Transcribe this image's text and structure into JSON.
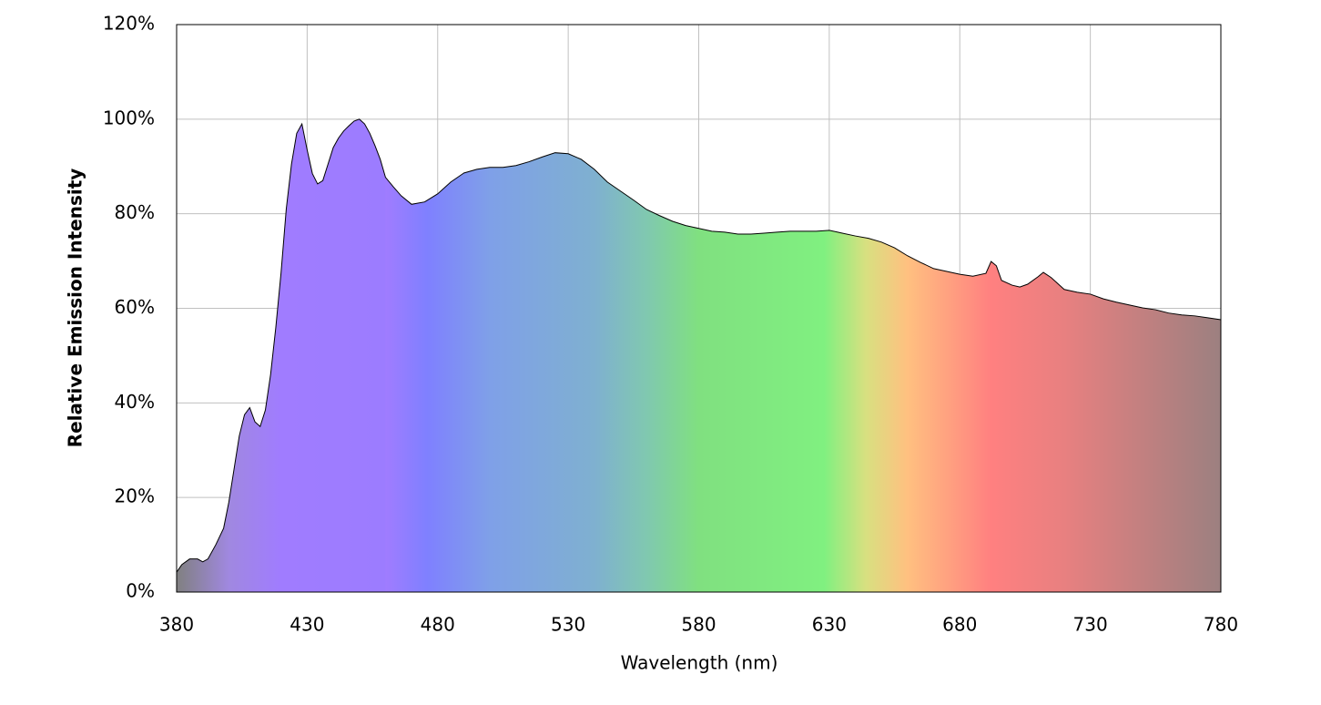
{
  "chart_data": {
    "type": "area",
    "x_label": "Wavelength (nm)",
    "y_label": "Relative Emission Intensity",
    "x": [
      380,
      382,
      385,
      388,
      390,
      392,
      395,
      398,
      400,
      402,
      404,
      406,
      408,
      410,
      412,
      414,
      416,
      418,
      420,
      422,
      424,
      426,
      428,
      430,
      432,
      434,
      436,
      438,
      440,
      442,
      444,
      446,
      448,
      450,
      452,
      454,
      456,
      458,
      460,
      463,
      466,
      470,
      475,
      480,
      485,
      490,
      495,
      500,
      505,
      510,
      515,
      520,
      525,
      530,
      535,
      540,
      545,
      550,
      555,
      560,
      565,
      570,
      575,
      580,
      585,
      590,
      595,
      600,
      605,
      610,
      615,
      620,
      625,
      630,
      635,
      640,
      645,
      650,
      655,
      660,
      665,
      670,
      675,
      680,
      685,
      690,
      692,
      694,
      696,
      700,
      703,
      706,
      710,
      712,
      715,
      720,
      725,
      730,
      735,
      740,
      745,
      750,
      755,
      760,
      765,
      770,
      775,
      780
    ],
    "values": [
      4.2,
      5.8,
      7,
      7,
      6.4,
      7,
      10,
      13.5,
      19,
      26,
      33,
      37.5,
      39,
      36,
      35,
      38.5,
      46,
      56,
      67.5,
      81,
      90.5,
      97,
      99,
      93.5,
      88.5,
      86.3,
      87,
      90.5,
      94,
      96,
      97.5,
      98.6,
      99.6,
      100,
      99,
      97,
      94.4,
      91.5,
      87.7,
      85.7,
      83.8,
      82,
      82.5,
      84.2,
      86.7,
      88.6,
      89.4,
      89.8,
      89.8,
      90.2,
      91,
      92,
      92.9,
      92.7,
      91.5,
      89.4,
      86.7,
      84.8,
      82.9,
      80.9,
      79.6,
      78.4,
      77.5,
      76.9,
      76.3,
      76.1,
      75.7,
      75.7,
      75.9,
      76.1,
      76.3,
      76.3,
      76.3,
      76.5,
      75.9,
      75.3,
      74.8,
      74,
      72.8,
      71.1,
      69.7,
      68.4,
      67.8,
      67.2,
      66.8,
      67.4,
      69.9,
      69,
      65.9,
      64.9,
      64.5,
      65.1,
      66.7,
      67.6,
      66.5,
      64,
      63.4,
      63,
      62,
      61.3,
      60.7,
      60.1,
      59.7,
      59,
      58.6,
      58.4,
      58,
      57.6
    ],
    "xlim": [
      380,
      780
    ],
    "xticks": [
      380,
      430,
      480,
      530,
      580,
      630,
      680,
      730,
      780
    ],
    "ylim": [
      0,
      120
    ],
    "yticks": [
      {
        "value": 0,
        "label": "0%"
      },
      {
        "value": 20,
        "label": "20%"
      },
      {
        "value": 40,
        "label": "40%"
      },
      {
        "value": 60,
        "label": "60%"
      },
      {
        "value": 80,
        "label": "80%"
      },
      {
        "value": 100,
        "label": "100%"
      },
      {
        "value": 120,
        "label": "120%"
      }
    ],
    "grid": true,
    "line_color": "#000000"
  }
}
